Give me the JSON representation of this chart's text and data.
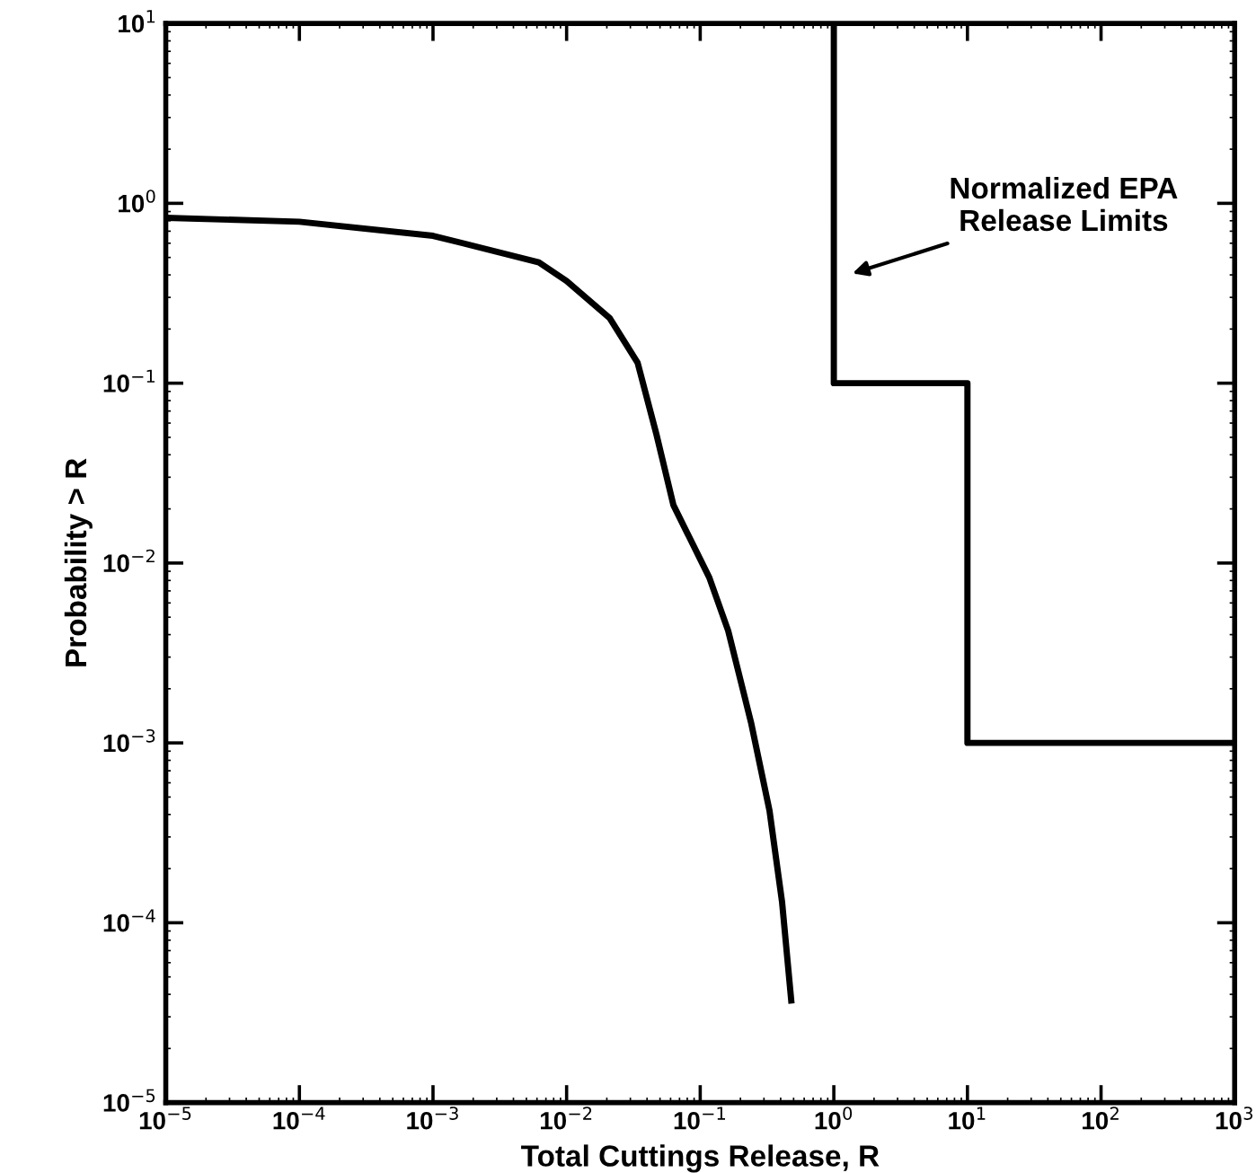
{
  "chart_data": {
    "type": "line",
    "xlabel": "Total Cuttings Release, R",
    "ylabel": "Probability > R",
    "log": "xy",
    "xlim": [
      1e-05,
      1000
    ],
    "ylim": [
      1e-05,
      10
    ],
    "xticks": [
      {
        "value": 1e-05,
        "label": "10$^{−5}$"
      },
      {
        "value": 0.0001,
        "label": "10$^{−4}$"
      },
      {
        "value": 0.001,
        "label": "10$^{−3}$"
      },
      {
        "value": 0.01,
        "label": "10$^{−2}$"
      },
      {
        "value": 0.1,
        "label": "10$^{−1}$"
      },
      {
        "value": 1,
        "label": "10$^{0}$"
      },
      {
        "value": 10,
        "label": "10$^{1}$"
      },
      {
        "value": 100,
        "label": "10$^{2}$"
      },
      {
        "value": 1000,
        "label": "10$^{3}$"
      }
    ],
    "yticks": [
      {
        "value": 1e-05,
        "label": "10$^{−5}$"
      },
      {
        "value": 0.0001,
        "label": "10$^{−4}$"
      },
      {
        "value": 0.001,
        "label": "10$^{−3}$"
      },
      {
        "value": 0.01,
        "label": "10$^{−2}$"
      },
      {
        "value": 0.1,
        "label": "10$^{−1}$"
      },
      {
        "value": 1,
        "label": "10$^{0}$"
      },
      {
        "value": 10,
        "label": "10$^{1}$"
      }
    ],
    "series": [
      {
        "color": "#000000",
        "x": [
          1e-05,
          0.0001,
          0.001,
          0.0062,
          0.01,
          0.021,
          0.034,
          0.047,
          0.063,
          0.1,
          0.117,
          0.162,
          0.24,
          0.33,
          0.41,
          0.48
        ],
        "values": [
          0.83,
          0.79,
          0.66,
          0.47,
          0.37,
          0.23,
          0.13,
          0.052,
          0.021,
          0.0105,
          0.0083,
          0.0042,
          0.0013,
          0.00042,
          0.00013,
          3.7e-05
        ]
      },
      {
        "color": "#000000",
        "x": [
          1,
          1,
          10,
          10,
          1000
        ],
        "values": [
          10,
          0.1,
          0.1,
          0.001,
          0.001
        ]
      }
    ],
    "annotations": [
      "Normalized EPA\nRelease Limits"
    ],
    "line_style": "solid",
    "marker": "none",
    "grid": false,
    "legend": false
  }
}
